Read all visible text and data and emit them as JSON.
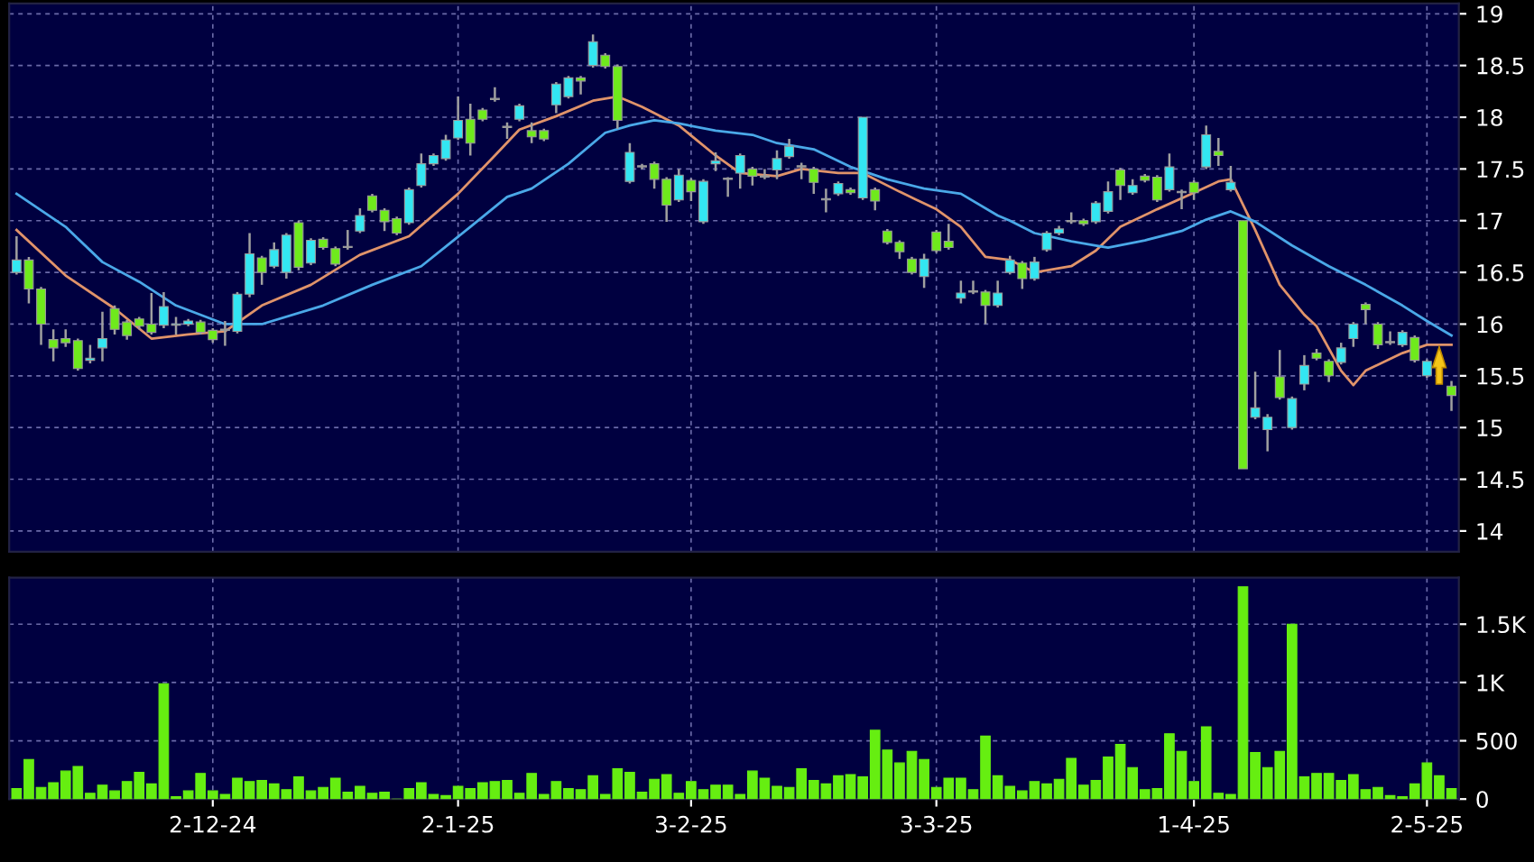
{
  "chart_data": [
    {
      "type": "candlestick",
      "tick_labels": "y",
      "grid": true,
      "ylim": [
        13.8,
        19.1
      ],
      "yticks": [
        14,
        14.5,
        15,
        15.5,
        16,
        16.5,
        17,
        17.5,
        18,
        18.5,
        19
      ],
      "categories": [
        null,
        null,
        null,
        null,
        null,
        null,
        null,
        null,
        null,
        null,
        null,
        null,
        null,
        null,
        null,
        null,
        null,
        null,
        null,
        null,
        null,
        null,
        null,
        null,
        null,
        null,
        null,
        null,
        null,
        null,
        null,
        null,
        null,
        null,
        null,
        null,
        null,
        null,
        null,
        null,
        null,
        null,
        null,
        null,
        null,
        null,
        null,
        null,
        null,
        null,
        null,
        null,
        null,
        null,
        null,
        null,
        null,
        null,
        null,
        null,
        null,
        null,
        null,
        null,
        null,
        null,
        null,
        null,
        null,
        null,
        null,
        null,
        null,
        null,
        null,
        null,
        null,
        null,
        null,
        null,
        null,
        null,
        null,
        null,
        null,
        null,
        null,
        null,
        null,
        null,
        null,
        null,
        null,
        null,
        null,
        null,
        null,
        null,
        null,
        null,
        null,
        null,
        null,
        null,
        null,
        null,
        null,
        null,
        null,
        null,
        null,
        null,
        null,
        null,
        null,
        null,
        null,
        null
      ],
      "ohlc": [
        [
          16.5,
          16.85,
          16.48,
          16.62
        ],
        [
          16.62,
          16.65,
          16.2,
          16.34
        ],
        [
          16.34,
          16.36,
          15.8,
          16.0
        ],
        [
          15.85,
          15.95,
          15.64,
          15.77
        ],
        [
          15.86,
          15.95,
          15.78,
          15.82
        ],
        [
          15.84,
          15.86,
          15.55,
          15.57
        ],
        [
          15.65,
          15.8,
          15.62,
          15.67
        ],
        [
          15.77,
          16.12,
          15.64,
          15.86
        ],
        [
          16.15,
          16.18,
          15.9,
          15.95
        ],
        [
          16.02,
          16.04,
          15.85,
          15.89
        ],
        [
          16.05,
          16.07,
          15.95,
          15.98
        ],
        [
          16.0,
          16.3,
          15.9,
          15.92
        ],
        [
          15.99,
          16.31,
          15.96,
          16.17
        ],
        [
          15.99,
          16.07,
          15.9,
          16.0
        ],
        [
          16.0,
          16.05,
          15.98,
          16.03
        ],
        [
          16.02,
          16.04,
          15.9,
          15.92
        ],
        [
          15.94,
          15.96,
          15.82,
          15.85
        ],
        [
          15.94,
          16.03,
          15.79,
          15.94
        ],
        [
          15.93,
          16.31,
          15.91,
          16.29
        ],
        [
          16.29,
          16.88,
          16.26,
          16.68
        ],
        [
          16.64,
          16.66,
          16.38,
          16.5
        ],
        [
          16.56,
          16.79,
          16.54,
          16.72
        ],
        [
          16.5,
          16.88,
          16.44,
          16.86
        ],
        [
          16.98,
          17.0,
          16.52,
          16.55
        ],
        [
          16.59,
          16.83,
          16.57,
          16.81
        ],
        [
          16.82,
          16.84,
          16.72,
          16.74
        ],
        [
          16.73,
          16.75,
          16.56,
          16.58
        ],
        [
          16.74,
          16.91,
          16.72,
          16.74
        ],
        [
          16.9,
          17.12,
          16.88,
          17.05
        ],
        [
          17.24,
          17.26,
          17.08,
          17.1
        ],
        [
          17.1,
          17.12,
          16.9,
          16.99
        ],
        [
          17.02,
          17.04,
          16.86,
          16.88
        ],
        [
          16.98,
          17.32,
          16.96,
          17.3
        ],
        [
          17.34,
          17.65,
          17.32,
          17.55
        ],
        [
          17.55,
          17.65,
          17.53,
          17.63
        ],
        [
          17.6,
          17.83,
          17.58,
          17.78
        ],
        [
          17.8,
          18.2,
          17.78,
          17.97
        ],
        [
          17.98,
          18.13,
          17.63,
          17.75
        ],
        [
          18.07,
          18.09,
          17.96,
          17.98
        ],
        [
          18.17,
          18.29,
          18.15,
          18.17
        ],
        [
          17.9,
          17.95,
          17.79,
          17.9
        ],
        [
          17.98,
          18.13,
          17.96,
          18.11
        ],
        [
          17.87,
          17.95,
          17.75,
          17.81
        ],
        [
          17.87,
          17.89,
          17.77,
          17.79
        ],
        [
          18.12,
          18.34,
          18.04,
          18.32
        ],
        [
          18.2,
          18.4,
          18.18,
          18.38
        ],
        [
          18.38,
          18.4,
          18.22,
          18.35
        ],
        [
          18.5,
          18.8,
          18.48,
          18.73
        ],
        [
          18.6,
          18.62,
          18.47,
          18.49
        ],
        [
          18.49,
          18.51,
          17.89,
          17.97
        ],
        [
          17.38,
          17.75,
          17.36,
          17.66
        ],
        [
          17.52,
          17.55,
          17.5,
          17.52
        ],
        [
          17.55,
          17.57,
          17.31,
          17.4
        ],
        [
          17.4,
          17.42,
          16.99,
          17.15
        ],
        [
          17.2,
          17.5,
          17.18,
          17.44
        ],
        [
          17.39,
          17.41,
          17.19,
          17.28
        ],
        [
          16.99,
          17.4,
          16.97,
          17.38
        ],
        [
          17.55,
          17.66,
          17.48,
          17.58
        ],
        [
          17.4,
          17.42,
          17.23,
          17.4
        ],
        [
          17.46,
          17.65,
          17.31,
          17.63
        ],
        [
          17.5,
          17.52,
          17.34,
          17.43
        ],
        [
          17.42,
          17.5,
          17.4,
          17.42
        ],
        [
          17.49,
          17.68,
          17.4,
          17.6
        ],
        [
          17.62,
          17.79,
          17.6,
          17.72
        ],
        [
          17.52,
          17.56,
          17.4,
          17.52
        ],
        [
          17.5,
          17.52,
          17.26,
          17.37
        ],
        [
          17.2,
          17.31,
          17.08,
          17.2
        ],
        [
          17.26,
          17.38,
          17.24,
          17.36
        ],
        [
          17.3,
          17.32,
          17.25,
          17.27
        ],
        [
          17.22,
          18.0,
          17.2,
          18.0
        ],
        [
          17.3,
          17.32,
          17.1,
          17.19
        ],
        [
          16.9,
          16.92,
          16.77,
          16.79
        ],
        [
          16.79,
          16.81,
          16.63,
          16.7
        ],
        [
          16.63,
          16.65,
          16.48,
          16.5
        ],
        [
          16.46,
          16.68,
          16.35,
          16.63
        ],
        [
          16.89,
          16.91,
          16.69,
          16.71
        ],
        [
          16.8,
          16.97,
          16.72,
          16.74
        ],
        [
          16.25,
          16.42,
          16.2,
          16.3
        ],
        [
          16.31,
          16.42,
          16.29,
          16.31
        ],
        [
          16.31,
          16.33,
          16.0,
          16.18
        ],
        [
          16.18,
          16.42,
          16.16,
          16.3
        ],
        [
          16.5,
          16.66,
          16.48,
          16.62
        ],
        [
          16.59,
          16.61,
          16.34,
          16.44
        ],
        [
          16.44,
          16.65,
          16.42,
          16.6
        ],
        [
          16.72,
          16.9,
          16.7,
          16.88
        ],
        [
          16.88,
          16.95,
          16.86,
          16.92
        ],
        [
          16.99,
          17.08,
          16.97,
          16.99
        ],
        [
          17.0,
          17.02,
          16.95,
          16.97
        ],
        [
          16.99,
          17.19,
          16.97,
          17.17
        ],
        [
          17.09,
          17.38,
          17.07,
          17.28
        ],
        [
          17.49,
          17.51,
          17.2,
          17.34
        ],
        [
          17.27,
          17.4,
          17.25,
          17.34
        ],
        [
          17.43,
          17.45,
          17.37,
          17.39
        ],
        [
          17.42,
          17.44,
          17.18,
          17.2
        ],
        [
          17.3,
          17.65,
          17.28,
          17.52
        ],
        [
          17.27,
          17.3,
          17.11,
          17.27
        ],
        [
          17.37,
          17.39,
          17.2,
          17.27
        ],
        [
          17.52,
          17.92,
          17.5,
          17.83
        ],
        [
          17.67,
          17.8,
          17.53,
          17.63
        ],
        [
          17.3,
          17.53,
          17.28,
          17.37
        ],
        [
          17.0,
          17.0,
          14.6,
          14.6
        ],
        [
          15.1,
          15.54,
          15.08,
          15.19
        ],
        [
          14.98,
          15.13,
          14.77,
          15.1
        ],
        [
          15.49,
          15.75,
          15.27,
          15.29
        ],
        [
          15.0,
          15.3,
          14.98,
          15.28
        ],
        [
          15.42,
          15.7,
          15.36,
          15.6
        ],
        [
          15.72,
          15.76,
          15.65,
          15.67
        ],
        [
          15.64,
          15.66,
          15.44,
          15.5
        ],
        [
          15.63,
          15.82,
          15.61,
          15.77
        ],
        [
          15.86,
          16.02,
          15.78,
          16.0
        ],
        [
          16.19,
          16.21,
          16.0,
          16.14
        ],
        [
          16.0,
          16.02,
          15.76,
          15.8
        ],
        [
          15.82,
          15.93,
          15.8,
          15.82
        ],
        [
          15.8,
          15.94,
          15.78,
          15.92
        ],
        [
          15.87,
          15.89,
          15.63,
          15.65
        ],
        [
          15.5,
          15.66,
          15.48,
          15.64
        ],
        null,
        [
          15.4,
          15.45,
          15.16,
          15.31
        ]
      ],
      "colors": [
        "#33e6f2",
        "#6fea1c",
        "#6fea1c",
        "#6fea1c",
        "#6fea1c",
        "#6fea1c",
        "#33e6f2",
        "#33e6f2",
        "#6fea1c",
        "#6fea1c",
        "#6fea1c",
        "#6fea1c",
        "#33e6f2",
        "#33e6f2",
        "#33e6f2",
        "#6fea1c",
        "#6fea1c",
        "#9a9a9a",
        "#33e6f2",
        "#33e6f2",
        "#6fea1c",
        "#33e6f2",
        "#33e6f2",
        "#6fea1c",
        "#33e6f2",
        "#6fea1c",
        "#6fea1c",
        "#9a9a9a",
        "#33e6f2",
        "#6fea1c",
        "#6fea1c",
        "#6fea1c",
        "#33e6f2",
        "#33e6f2",
        "#33e6f2",
        "#33e6f2",
        "#33e6f2",
        "#6fea1c",
        "#6fea1c",
        "#9a9a9a",
        "#9a9a9a",
        "#33e6f2",
        "#6fea1c",
        "#6fea1c",
        "#33e6f2",
        "#33e6f2",
        "#6fea1c",
        "#33e6f2",
        "#6fea1c",
        "#6fea1c",
        "#33e6f2",
        "#9a9a9a",
        "#6fea1c",
        "#6fea1c",
        "#33e6f2",
        "#6fea1c",
        "#33e6f2",
        "#33e6f2",
        "#9a9a9a",
        "#33e6f2",
        "#6fea1c",
        "#9a9a9a",
        "#33e6f2",
        "#33e6f2",
        "#9a9a9a",
        "#6fea1c",
        "#9a9a9a",
        "#33e6f2",
        "#6fea1c",
        "#33e6f2",
        "#6fea1c",
        "#6fea1c",
        "#6fea1c",
        "#6fea1c",
        "#33e6f2",
        "#6fea1c",
        "#6fea1c",
        "#33e6f2",
        "#9a9a9a",
        "#6fea1c",
        "#33e6f2",
        "#33e6f2",
        "#6fea1c",
        "#33e6f2",
        "#33e6f2",
        "#33e6f2",
        "#9a9a9a",
        "#6fea1c",
        "#33e6f2",
        "#33e6f2",
        "#6fea1c",
        "#33e6f2",
        "#6fea1c",
        "#6fea1c",
        "#33e6f2",
        "#9a9a9a",
        "#6fea1c",
        "#33e6f2",
        "#6fea1c",
        "#33e6f2",
        "#6fea1c",
        "#33e6f2",
        "#33e6f2",
        "#6fea1c",
        "#33e6f2",
        "#33e6f2",
        "#6fea1c",
        "#6fea1c",
        "#33e6f2",
        "#33e6f2",
        "#6fea1c",
        "#6fea1c",
        "#9a9a9a",
        "#33e6f2",
        "#6fea1c",
        "#33e6f2",
        null,
        "#6fea1c"
      ],
      "series": [
        {
          "type": "line",
          "color": "#e0936a",
          "values": [
            16.91,
            null,
            null,
            null,
            16.47,
            null,
            null,
            null,
            16.15,
            null,
            null,
            15.86,
            null,
            null,
            15.9,
            null,
            null,
            15.93,
            null,
            null,
            16.18,
            null,
            null,
            null,
            16.38,
            null,
            null,
            null,
            16.67,
            null,
            null,
            null,
            16.85,
            null,
            null,
            null,
            17.26,
            null,
            null,
            17.63,
            null,
            17.88,
            null,
            null,
            18.01,
            null,
            null,
            18.16,
            null,
            18.2,
            null,
            18.1,
            null,
            null,
            17.92,
            null,
            null,
            17.63,
            null,
            17.46,
            null,
            null,
            17.43,
            null,
            17.5,
            null,
            null,
            17.46,
            null,
            17.46,
            null,
            null,
            17.28,
            null,
            null,
            17.11,
            null,
            16.94,
            null,
            16.65,
            null,
            16.62,
            null,
            16.5,
            null,
            null,
            16.56,
            null,
            16.71,
            null,
            16.94,
            null,
            null,
            17.11,
            null,
            null,
            17.27,
            null,
            17.38,
            17.4,
            null,
            16.91,
            null,
            16.38,
            null,
            16.09,
            15.98,
            null,
            15.55,
            15.41,
            15.55,
            null,
            null,
            15.72,
            null,
            15.8,
            null,
            15.8
          ]
        },
        {
          "type": "line",
          "color": "#4aa8e8",
          "values": [
            17.26,
            null,
            null,
            null,
            16.94,
            null,
            null,
            16.6,
            null,
            null,
            16.41,
            null,
            null,
            16.18,
            null,
            null,
            null,
            16.0,
            null,
            null,
            16.0,
            null,
            null,
            null,
            null,
            16.18,
            null,
            null,
            null,
            16.38,
            null,
            null,
            null,
            16.56,
            null,
            null,
            null,
            16.94,
            null,
            null,
            17.23,
            null,
            17.31,
            null,
            null,
            17.55,
            null,
            null,
            17.85,
            null,
            17.92,
            null,
            17.97,
            null,
            17.94,
            null,
            null,
            17.87,
            null,
            null,
            17.83,
            null,
            17.75,
            null,
            null,
            17.69,
            null,
            null,
            17.52,
            null,
            null,
            17.4,
            null,
            null,
            17.31,
            null,
            null,
            17.26,
            null,
            null,
            17.05,
            17.0,
            null,
            16.88,
            null,
            null,
            16.8,
            null,
            16.76,
            16.74,
            null,
            null,
            16.81,
            null,
            null,
            16.9,
            null,
            17.01,
            null,
            17.09,
            null,
            16.99,
            null,
            null,
            16.76,
            null,
            null,
            16.56,
            null,
            null,
            16.38,
            null,
            null,
            16.18,
            null,
            16.03,
            null,
            15.89
          ]
        }
      ]
    },
    {
      "type": "bar",
      "grid": true,
      "color": "#66ee11",
      "ylim": [
        0,
        1900
      ],
      "yticks": [
        0,
        500,
        {
          "value": 1000,
          "label": "1K"
        },
        {
          "value": 1500,
          "label": "1.5K"
        }
      ],
      "categories": [
        null,
        null,
        null,
        null,
        null,
        null,
        null,
        null,
        null,
        null,
        null,
        null,
        null,
        null,
        null,
        null,
        "2-12-24",
        null,
        null,
        null,
        null,
        null,
        null,
        null,
        null,
        null,
        null,
        null,
        null,
        null,
        null,
        null,
        null,
        null,
        null,
        null,
        "2-1-25",
        null,
        null,
        null,
        null,
        null,
        null,
        null,
        null,
        null,
        null,
        null,
        null,
        null,
        null,
        null,
        null,
        null,
        null,
        "3-2-25",
        null,
        null,
        null,
        null,
        null,
        null,
        null,
        null,
        null,
        null,
        null,
        null,
        null,
        null,
        null,
        null,
        null,
        null,
        null,
        "3-3-25",
        null,
        null,
        null,
        null,
        null,
        null,
        null,
        null,
        null,
        null,
        null,
        null,
        null,
        null,
        null,
        null,
        null,
        null,
        null,
        null,
        "1-4-25",
        null,
        null,
        null,
        null,
        null,
        null,
        null,
        null,
        null,
        null,
        null,
        null,
        null,
        null,
        null,
        null,
        null,
        null,
        "2-5-25",
        null,
        null
      ],
      "values": [
        90,
        340,
        100,
        140,
        240,
        280,
        50,
        120,
        70,
        150,
        230,
        130,
        990,
        20,
        70,
        220,
        70,
        40,
        180,
        150,
        160,
        130,
        80,
        190,
        70,
        100,
        180,
        60,
        110,
        50,
        60,
        0,
        90,
        140,
        40,
        30,
        110,
        90,
        140,
        150,
        160,
        50,
        220,
        40,
        150,
        90,
        80,
        200,
        40,
        260,
        230,
        60,
        170,
        210,
        50,
        150,
        80,
        120,
        120,
        40,
        240,
        180,
        110,
        100,
        260,
        160,
        130,
        200,
        210,
        190,
        590,
        420,
        310,
        410,
        340,
        100,
        180,
        180,
        80,
        540,
        200,
        110,
        70,
        150,
        130,
        170,
        350,
        120,
        160,
        360,
        470,
        270,
        80,
        90,
        560,
        410,
        150,
        620,
        50,
        40,
        1820,
        400,
        270,
        410,
        1500,
        190,
        220,
        220,
        160,
        210,
        80,
        100,
        30,
        20,
        130,
        310,
        200,
        90
      ]
    }
  ]
}
